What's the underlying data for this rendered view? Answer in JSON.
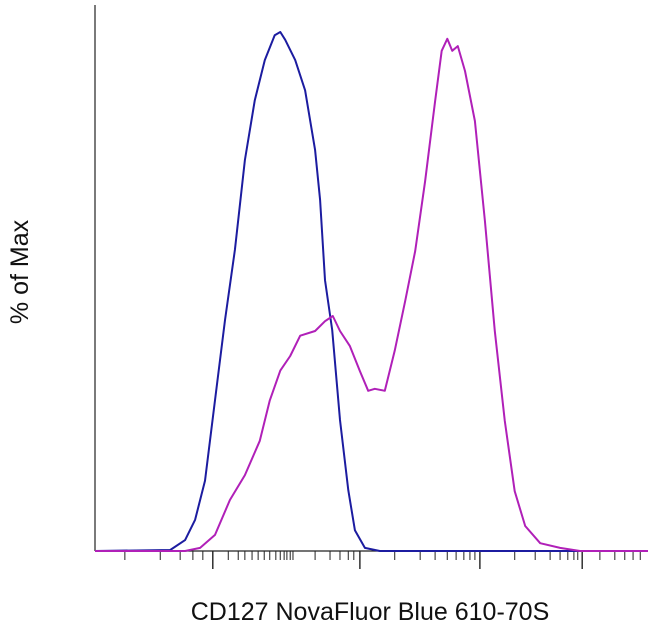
{
  "chart_data": {
    "type": "line",
    "xlabel": "CD127 NovaFluor Blue 610-70S",
    "ylabel": "% of Max",
    "xlim": [
      0,
      100
    ],
    "ylim": [
      0,
      105
    ],
    "xticks": [
      21.3,
      47.9,
      69.6,
      88.1
    ],
    "xminorticks": [
      5.4,
      11.8,
      15.4,
      17.7,
      19.5,
      24.1,
      25.9,
      27.1,
      28.4,
      29.5,
      30.6,
      31.6,
      32.7,
      33.5,
      34.2,
      34.7,
      35.3,
      35.8,
      39.8,
      42.5,
      44.3,
      45.8,
      46.8,
      54.2,
      58.8,
      61.5,
      63.7,
      65.3,
      66.7,
      67.8,
      68.7,
      75.9,
      79.6,
      82.3,
      84.1,
      85.5,
      86.6,
      87.3,
      91.3,
      94.0,
      95.8,
      97.3,
      98.6
    ],
    "series": [
      {
        "color": "#1c1ca0",
        "x": [
          0,
          13.6,
          16.3,
          18.1,
          19.9,
          21.7,
          23.5,
          25.3,
          27.1,
          28.9,
          30.7,
          32.5,
          33.5,
          34.4,
          36.2,
          38.0,
          39.8,
          40.7,
          41.6,
          42.9,
          44.3,
          45.8,
          47.0,
          48.8,
          51.5,
          100
        ],
        "values": [
          0,
          0.2,
          2.1,
          6.0,
          13.5,
          29.0,
          44.4,
          57.9,
          75.2,
          86.7,
          94.4,
          99.2,
          99.8,
          98.3,
          94.4,
          88.6,
          77.1,
          67.5,
          52.1,
          42.5,
          25.2,
          11.7,
          4.0,
          0.6,
          0,
          0
        ]
      },
      {
        "color": "#b020b8",
        "x": [
          0,
          16.3,
          19.0,
          21.7,
          24.4,
          27.1,
          29.8,
          31.6,
          33.5,
          35.3,
          37.1,
          39.8,
          41.6,
          43.0,
          44.3,
          46.1,
          47.9,
          49.4,
          50.6,
          52.4,
          54.2,
          56.1,
          57.9,
          59.7,
          61.5,
          62.7,
          63.7,
          64.6,
          65.6,
          66.9,
          68.7,
          70.5,
          72.3,
          74.1,
          75.9,
          77.8,
          80.5,
          84.1,
          87.7,
          100
        ],
        "values": [
          0,
          0,
          0.6,
          3.1,
          9.8,
          14.6,
          21.2,
          28.9,
          34.7,
          37.5,
          41.4,
          42.3,
          44.2,
          45.2,
          42.3,
          39.4,
          34.6,
          30.8,
          31.2,
          30.8,
          38.5,
          48.1,
          57.7,
          71.1,
          86.5,
          96.2,
          98.5,
          96.2,
          97.1,
          92.3,
          82.7,
          63.5,
          42.3,
          25.0,
          11.5,
          4.8,
          1.5,
          0.6,
          0,
          0
        ]
      }
    ]
  }
}
